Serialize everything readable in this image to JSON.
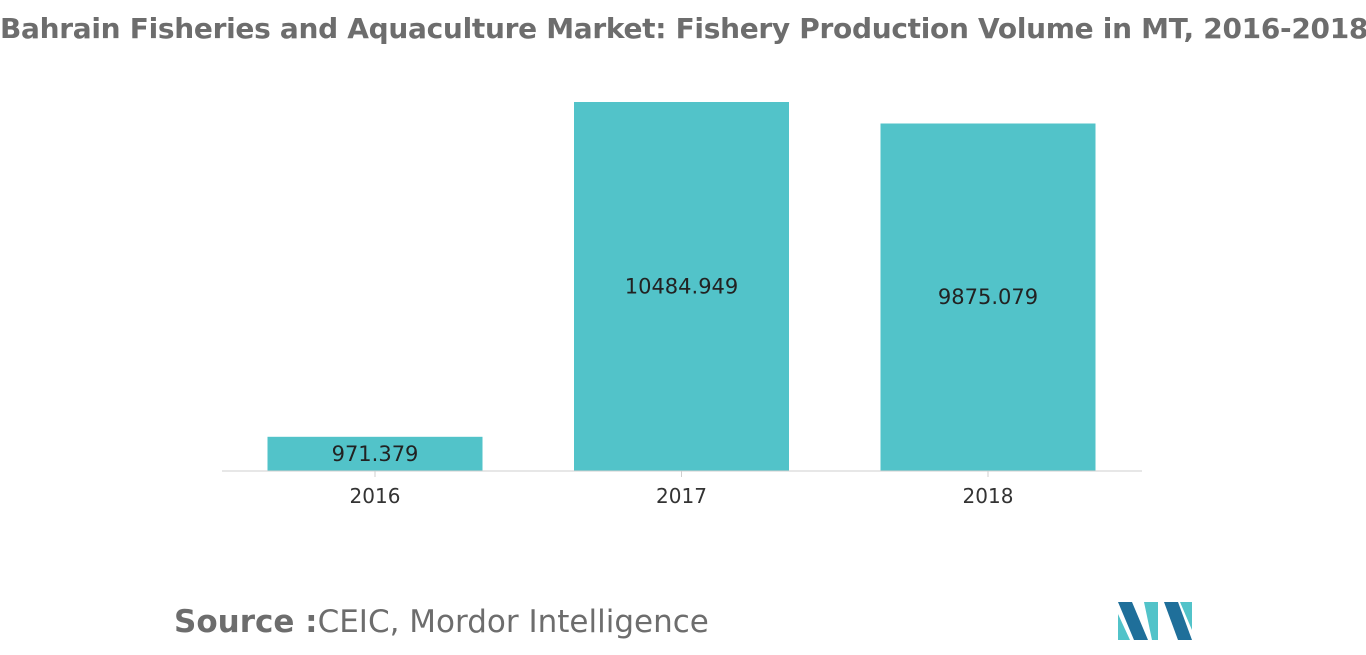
{
  "chart_data": {
    "type": "bar",
    "title": "Bahrain Fisheries and Aquaculture Market: Fishery Production Volume in MT, 2016-2018",
    "categories": [
      "2016",
      "2017",
      "2018"
    ],
    "values": [
      971.379,
      10484.949,
      9875.079
    ],
    "value_labels": [
      "971.379",
      "10484.949",
      "9875.079"
    ],
    "xlabel": "",
    "ylabel": "",
    "ylim": [
      0,
      10484.949
    ],
    "grid": false,
    "legend": "none",
    "bar_color": "#52c3c9"
  },
  "source": {
    "label": "Source :",
    "text": "CEIC, Mordor Intelligence"
  },
  "colors": {
    "title": "#6d6d6d",
    "axis": "#cfcfcf",
    "text": "#333333",
    "logo_dark": "#1f6f9a",
    "logo_light": "#52c3c9"
  }
}
